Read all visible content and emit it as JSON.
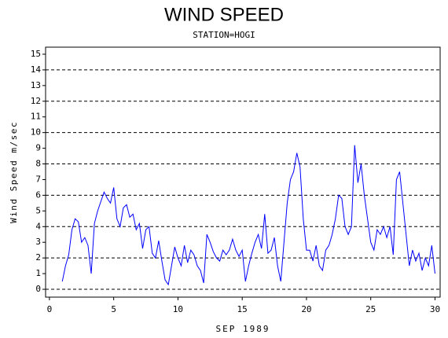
{
  "chart_data": {
    "type": "line",
    "title": "WIND SPEED",
    "subtitle": "STATION=HOGI",
    "x_label": "SEP 1989",
    "y_label": "Wind Speed m/sec",
    "x": [
      1,
      1.25,
      1.5,
      1.75,
      2,
      2.25,
      2.5,
      2.75,
      3,
      3.25,
      3.5,
      3.75,
      4,
      4.25,
      4.5,
      4.75,
      5,
      5.25,
      5.5,
      5.75,
      6,
      6.25,
      6.5,
      6.75,
      7,
      7.25,
      7.5,
      7.75,
      8,
      8.25,
      8.5,
      8.75,
      9,
      9.25,
      9.5,
      9.75,
      10,
      10.25,
      10.5,
      10.75,
      11,
      11.25,
      11.5,
      11.75,
      12,
      12.25,
      12.5,
      12.75,
      13,
      13.25,
      13.5,
      13.75,
      14,
      14.25,
      14.5,
      14.75,
      15,
      15.25,
      15.5,
      15.75,
      16,
      16.25,
      16.5,
      16.75,
      17,
      17.25,
      17.5,
      17.75,
      18,
      18.25,
      18.5,
      18.75,
      19,
      19.25,
      19.5,
      19.75,
      20,
      20.25,
      20.5,
      20.75,
      21,
      21.25,
      21.5,
      21.75,
      22,
      22.25,
      22.5,
      22.75,
      23,
      23.25,
      23.5,
      23.75,
      24,
      24.25,
      24.5,
      24.75,
      25,
      25.25,
      25.5,
      25.75,
      26,
      26.25,
      26.5,
      26.75,
      27,
      27.25,
      27.5,
      27.75,
      28,
      28.25,
      28.5,
      28.75,
      29,
      29.25,
      29.5,
      29.75,
      30
    ],
    "series": [
      {
        "name": "Wind Speed",
        "color": "#0000ff",
        "values": [
          0.5,
          1.5,
          2.2,
          3.8,
          4.5,
          4.3,
          3.0,
          3.3,
          2.8,
          1.0,
          4.2,
          5.0,
          5.6,
          6.2,
          5.8,
          5.5,
          6.5,
          4.5,
          4.0,
          5.2,
          5.4,
          4.6,
          4.8,
          3.8,
          4.2,
          2.6,
          3.8,
          4.0,
          2.3,
          2.0,
          3.1,
          1.8,
          0.6,
          0.3,
          1.5,
          2.7,
          2.0,
          1.5,
          2.8,
          1.7,
          2.5,
          2.2,
          1.5,
          1.2,
          0.4,
          3.5,
          3.0,
          2.4,
          2.0,
          1.8,
          2.5,
          2.2,
          2.5,
          3.2,
          2.5,
          2.1,
          2.5,
          0.5,
          1.5,
          2.3,
          3.0,
          3.5,
          2.6,
          4.8,
          2.3,
          2.5,
          3.3,
          1.5,
          0.5,
          3.0,
          5.5,
          7.0,
          7.5,
          8.7,
          7.8,
          4.5,
          2.5,
          2.5,
          1.8,
          2.8,
          1.5,
          1.2,
          2.5,
          2.8,
          3.5,
          4.5,
          6.0,
          5.8,
          4.0,
          3.5,
          4.0,
          9.2,
          6.8,
          8.0,
          6.0,
          4.5,
          3.0,
          2.5,
          3.8,
          3.5,
          4.0,
          3.3,
          4.0,
          2.2,
          7.0,
          7.5,
          5.5,
          3.5,
          1.5,
          2.5,
          1.8,
          2.3,
          1.2,
          2.0,
          1.5,
          2.8,
          1.0
        ]
      }
    ],
    "xlim": [
      -0.3,
      30.4
    ],
    "xticks": [
      0,
      5,
      10,
      15,
      20,
      25,
      30
    ],
    "ylim": [
      -0.5,
      15.45
    ],
    "yticks": [
      0,
      1,
      2,
      3,
      4,
      5,
      6,
      7,
      8,
      9,
      10,
      11,
      12,
      13,
      14,
      15
    ],
    "ygrid": [
      0,
      2,
      4,
      6,
      8,
      10,
      12,
      14
    ]
  }
}
